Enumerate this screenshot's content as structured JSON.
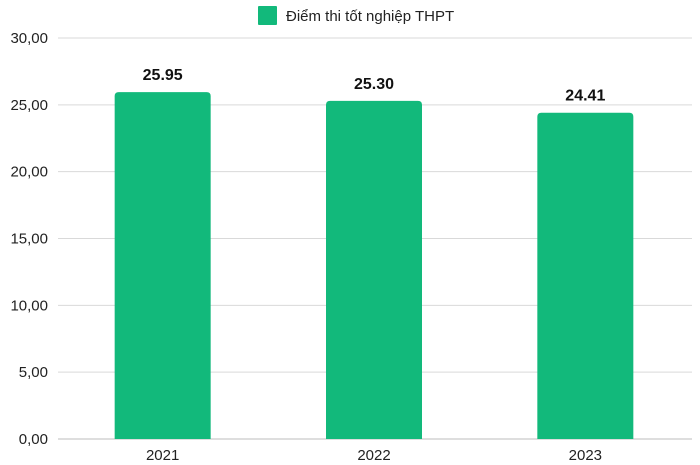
{
  "chart_data": {
    "type": "bar",
    "title": "",
    "xlabel": "",
    "ylabel": "",
    "categories": [
      "2021",
      "2022",
      "2023"
    ],
    "series": [
      {
        "name": "Điểm thi tốt nghiệp THPT",
        "values": [
          25.95,
          25.3,
          24.41
        ],
        "value_labels": [
          "25.95",
          "25.30",
          "24.41"
        ],
        "color": "#12b97b"
      }
    ],
    "ylim": [
      0,
      30
    ],
    "yticks": [
      0,
      5,
      10,
      15,
      20,
      25,
      30
    ],
    "ytick_labels": [
      "0,00",
      "5,00",
      "10,00",
      "15,00",
      "20,00",
      "25,00",
      "30,00"
    ],
    "grid": true,
    "legend_position": "top-center"
  }
}
